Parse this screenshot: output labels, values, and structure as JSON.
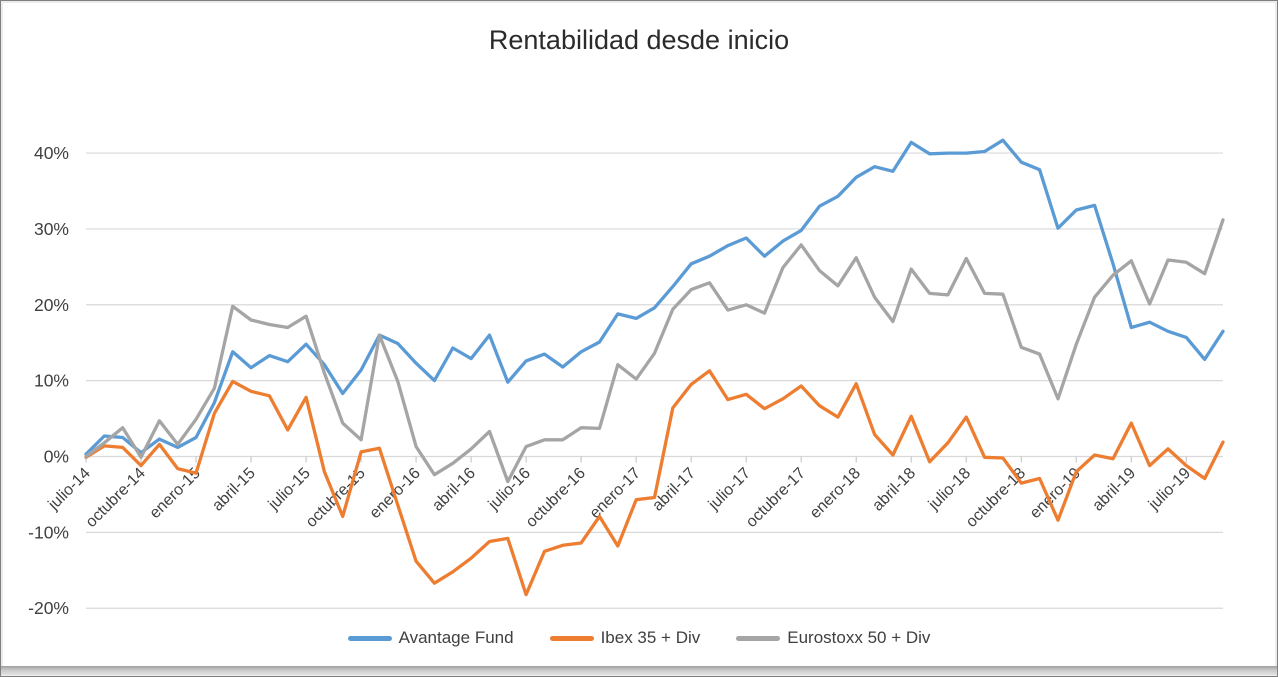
{
  "chart_data": {
    "type": "line",
    "title": "Rentabilidad desde inicio",
    "x_tick_labels": [
      "julio-14",
      "octubre-14",
      "enero-15",
      "abril-15",
      "julio-15",
      "octubre-15",
      "enero-16",
      "abril-16",
      "julio-16",
      "octubre-16",
      "enero-17",
      "abril-17",
      "julio-17",
      "octubre-17",
      "enero-18",
      "abril-18",
      "julio-18",
      "octubre-18",
      "enero-19",
      "abril-19",
      "julio-19"
    ],
    "x_months_per_tick": 3,
    "x_points_total": 63,
    "y_ticks": [
      40,
      30,
      20,
      10,
      0,
      -10,
      -20
    ],
    "y_tick_suffix": "%",
    "ylim": [
      -20,
      40
    ],
    "grid": "horizontal",
    "gridline_color": "#D9D9D9",
    "axis_text_color": "#404040",
    "legend_position": "bottom",
    "series": [
      {
        "name": "Avantage Fund",
        "color": "#5B9BD5",
        "values": [
          0.3,
          2.7,
          2.5,
          0.5,
          2.3,
          1.2,
          2.5,
          7.1,
          13.8,
          11.7,
          13.3,
          12.5,
          14.8,
          12.1,
          8.3,
          11.4,
          16.0,
          14.9,
          12.3,
          10.0,
          14.3,
          12.9,
          16.0,
          9.8,
          12.6,
          13.5,
          11.8,
          13.8,
          15.1,
          18.8,
          18.2,
          19.6,
          22.4,
          25.4,
          26.4,
          27.8,
          28.8,
          26.4,
          28.4,
          29.8,
          33.0,
          34.3,
          36.8,
          38.2,
          37.6,
          41.4,
          39.9,
          40.0,
          40.0,
          40.2,
          41.7,
          38.8,
          37.8,
          30.1,
          32.5,
          33.1,
          25.4,
          17.0,
          17.7,
          16.5,
          15.7,
          12.8,
          16.5
        ]
      },
      {
        "name": "Ibex 35 + Div",
        "color": "#ED7D31",
        "values": [
          -0.1,
          1.4,
          1.2,
          -1.2,
          1.6,
          -1.6,
          -2.2,
          5.7,
          9.9,
          8.6,
          8.0,
          3.5,
          7.8,
          -2.0,
          -7.9,
          0.6,
          1.1,
          -6.4,
          -13.8,
          -16.7,
          -15.2,
          -13.4,
          -11.2,
          -10.8,
          -18.2,
          -12.5,
          -11.7,
          -11.4,
          -7.9,
          -11.8,
          -5.7,
          -5.4,
          6.4,
          9.5,
          11.3,
          7.5,
          8.2,
          6.3,
          7.6,
          9.3,
          6.7,
          5.2,
          9.6,
          2.9,
          0.2,
          5.3,
          -0.7,
          1.8,
          5.2,
          -0.1,
          -0.2,
          -3.5,
          -2.9,
          -8.4,
          -2.0,
          0.2,
          -0.3,
          4.4,
          -1.2,
          1.0,
          -1.2,
          -2.9,
          1.9
        ]
      },
      {
        "name": "Eurostoxx 50 + Div",
        "color": "#A5A5A5",
        "values": [
          0.0,
          1.8,
          3.8,
          -0.1,
          4.7,
          1.6,
          4.9,
          9.0,
          19.8,
          18.0,
          17.4,
          17.0,
          18.5,
          11.0,
          4.4,
          2.2,
          16.0,
          9.9,
          1.3,
          -2.4,
          -0.9,
          1.0,
          3.3,
          -3.3,
          1.3,
          2.2,
          2.2,
          3.8,
          3.7,
          12.1,
          10.2,
          13.6,
          19.4,
          22.0,
          22.9,
          19.3,
          20.0,
          18.9,
          24.9,
          27.9,
          24.5,
          22.5,
          26.2,
          21.0,
          17.8,
          24.7,
          21.5,
          21.3,
          26.1,
          21.5,
          21.4,
          14.4,
          13.5,
          7.6,
          14.8,
          21.0,
          23.9,
          25.8,
          20.1,
          25.9,
          25.6,
          24.1,
          31.2
        ]
      }
    ]
  }
}
